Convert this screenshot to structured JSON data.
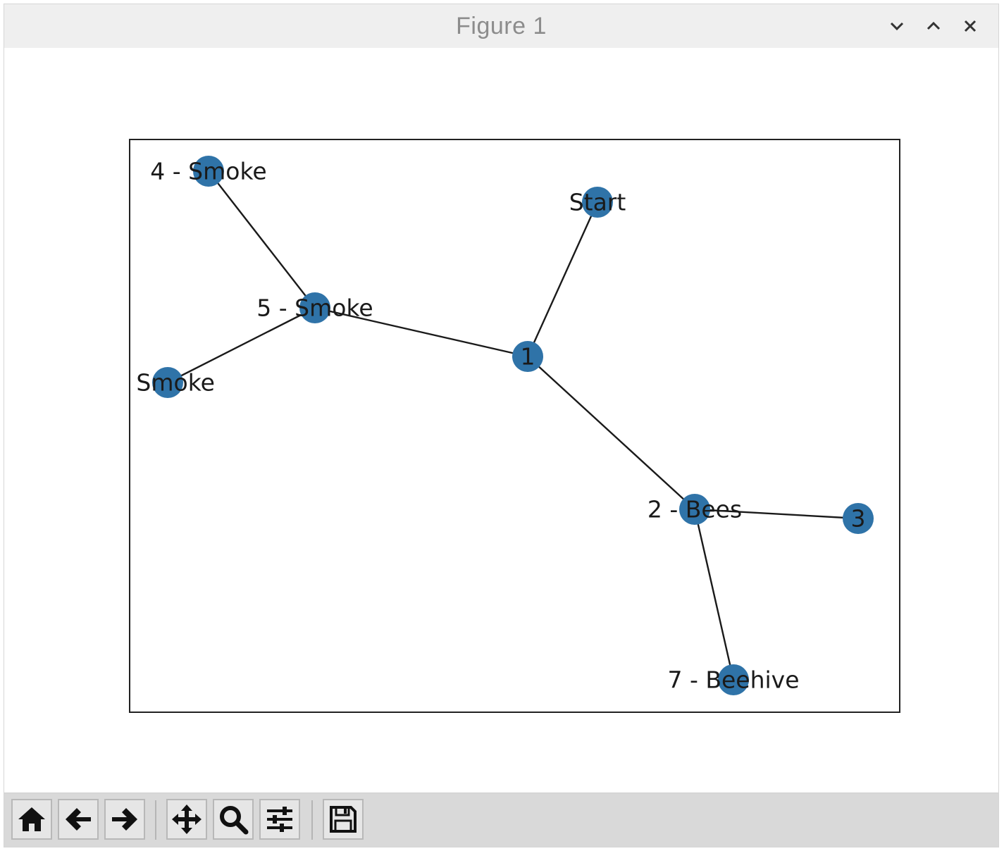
{
  "window": {
    "title": "Figure 1",
    "buttons": [
      {
        "name": "minimize-button",
        "icon": "chevron-down-icon"
      },
      {
        "name": "maximize-button",
        "icon": "chevron-up-icon"
      },
      {
        "name": "close-button",
        "icon": "close-icon"
      }
    ]
  },
  "graph": {
    "node_color": "#2f73a8",
    "edge_color": "#1a1a1a",
    "nodes": [
      {
        "id": "start",
        "label": "Start"
      },
      {
        "id": "n1",
        "label": "1"
      },
      {
        "id": "n5",
        "label": "5 - Smoke"
      },
      {
        "id": "n4",
        "label": "4 - Smoke"
      },
      {
        "id": "n6",
        "label": "- Smoke"
      },
      {
        "id": "n2",
        "label": "2 - Bees"
      },
      {
        "id": "n3",
        "label": "3"
      },
      {
        "id": "n7",
        "label": "7 - Beehive"
      }
    ],
    "edges": [
      [
        "start",
        "n1"
      ],
      [
        "n1",
        "n5"
      ],
      [
        "n5",
        "n4"
      ],
      [
        "n5",
        "n6"
      ],
      [
        "n1",
        "n2"
      ],
      [
        "n2",
        "n3"
      ],
      [
        "n2",
        "n7"
      ]
    ]
  },
  "toolbar": {
    "buttons": [
      {
        "name": "home-button",
        "icon": "home-icon"
      },
      {
        "name": "back-button",
        "icon": "arrow-left-icon"
      },
      {
        "name": "forward-button",
        "icon": "arrow-right-icon"
      },
      {
        "name": "pan-button",
        "icon": "move-icon"
      },
      {
        "name": "zoom-button",
        "icon": "magnifier-icon"
      },
      {
        "name": "configure-subplots-button",
        "icon": "sliders-icon"
      },
      {
        "name": "save-button",
        "icon": "floppy-disk-icon"
      }
    ]
  }
}
